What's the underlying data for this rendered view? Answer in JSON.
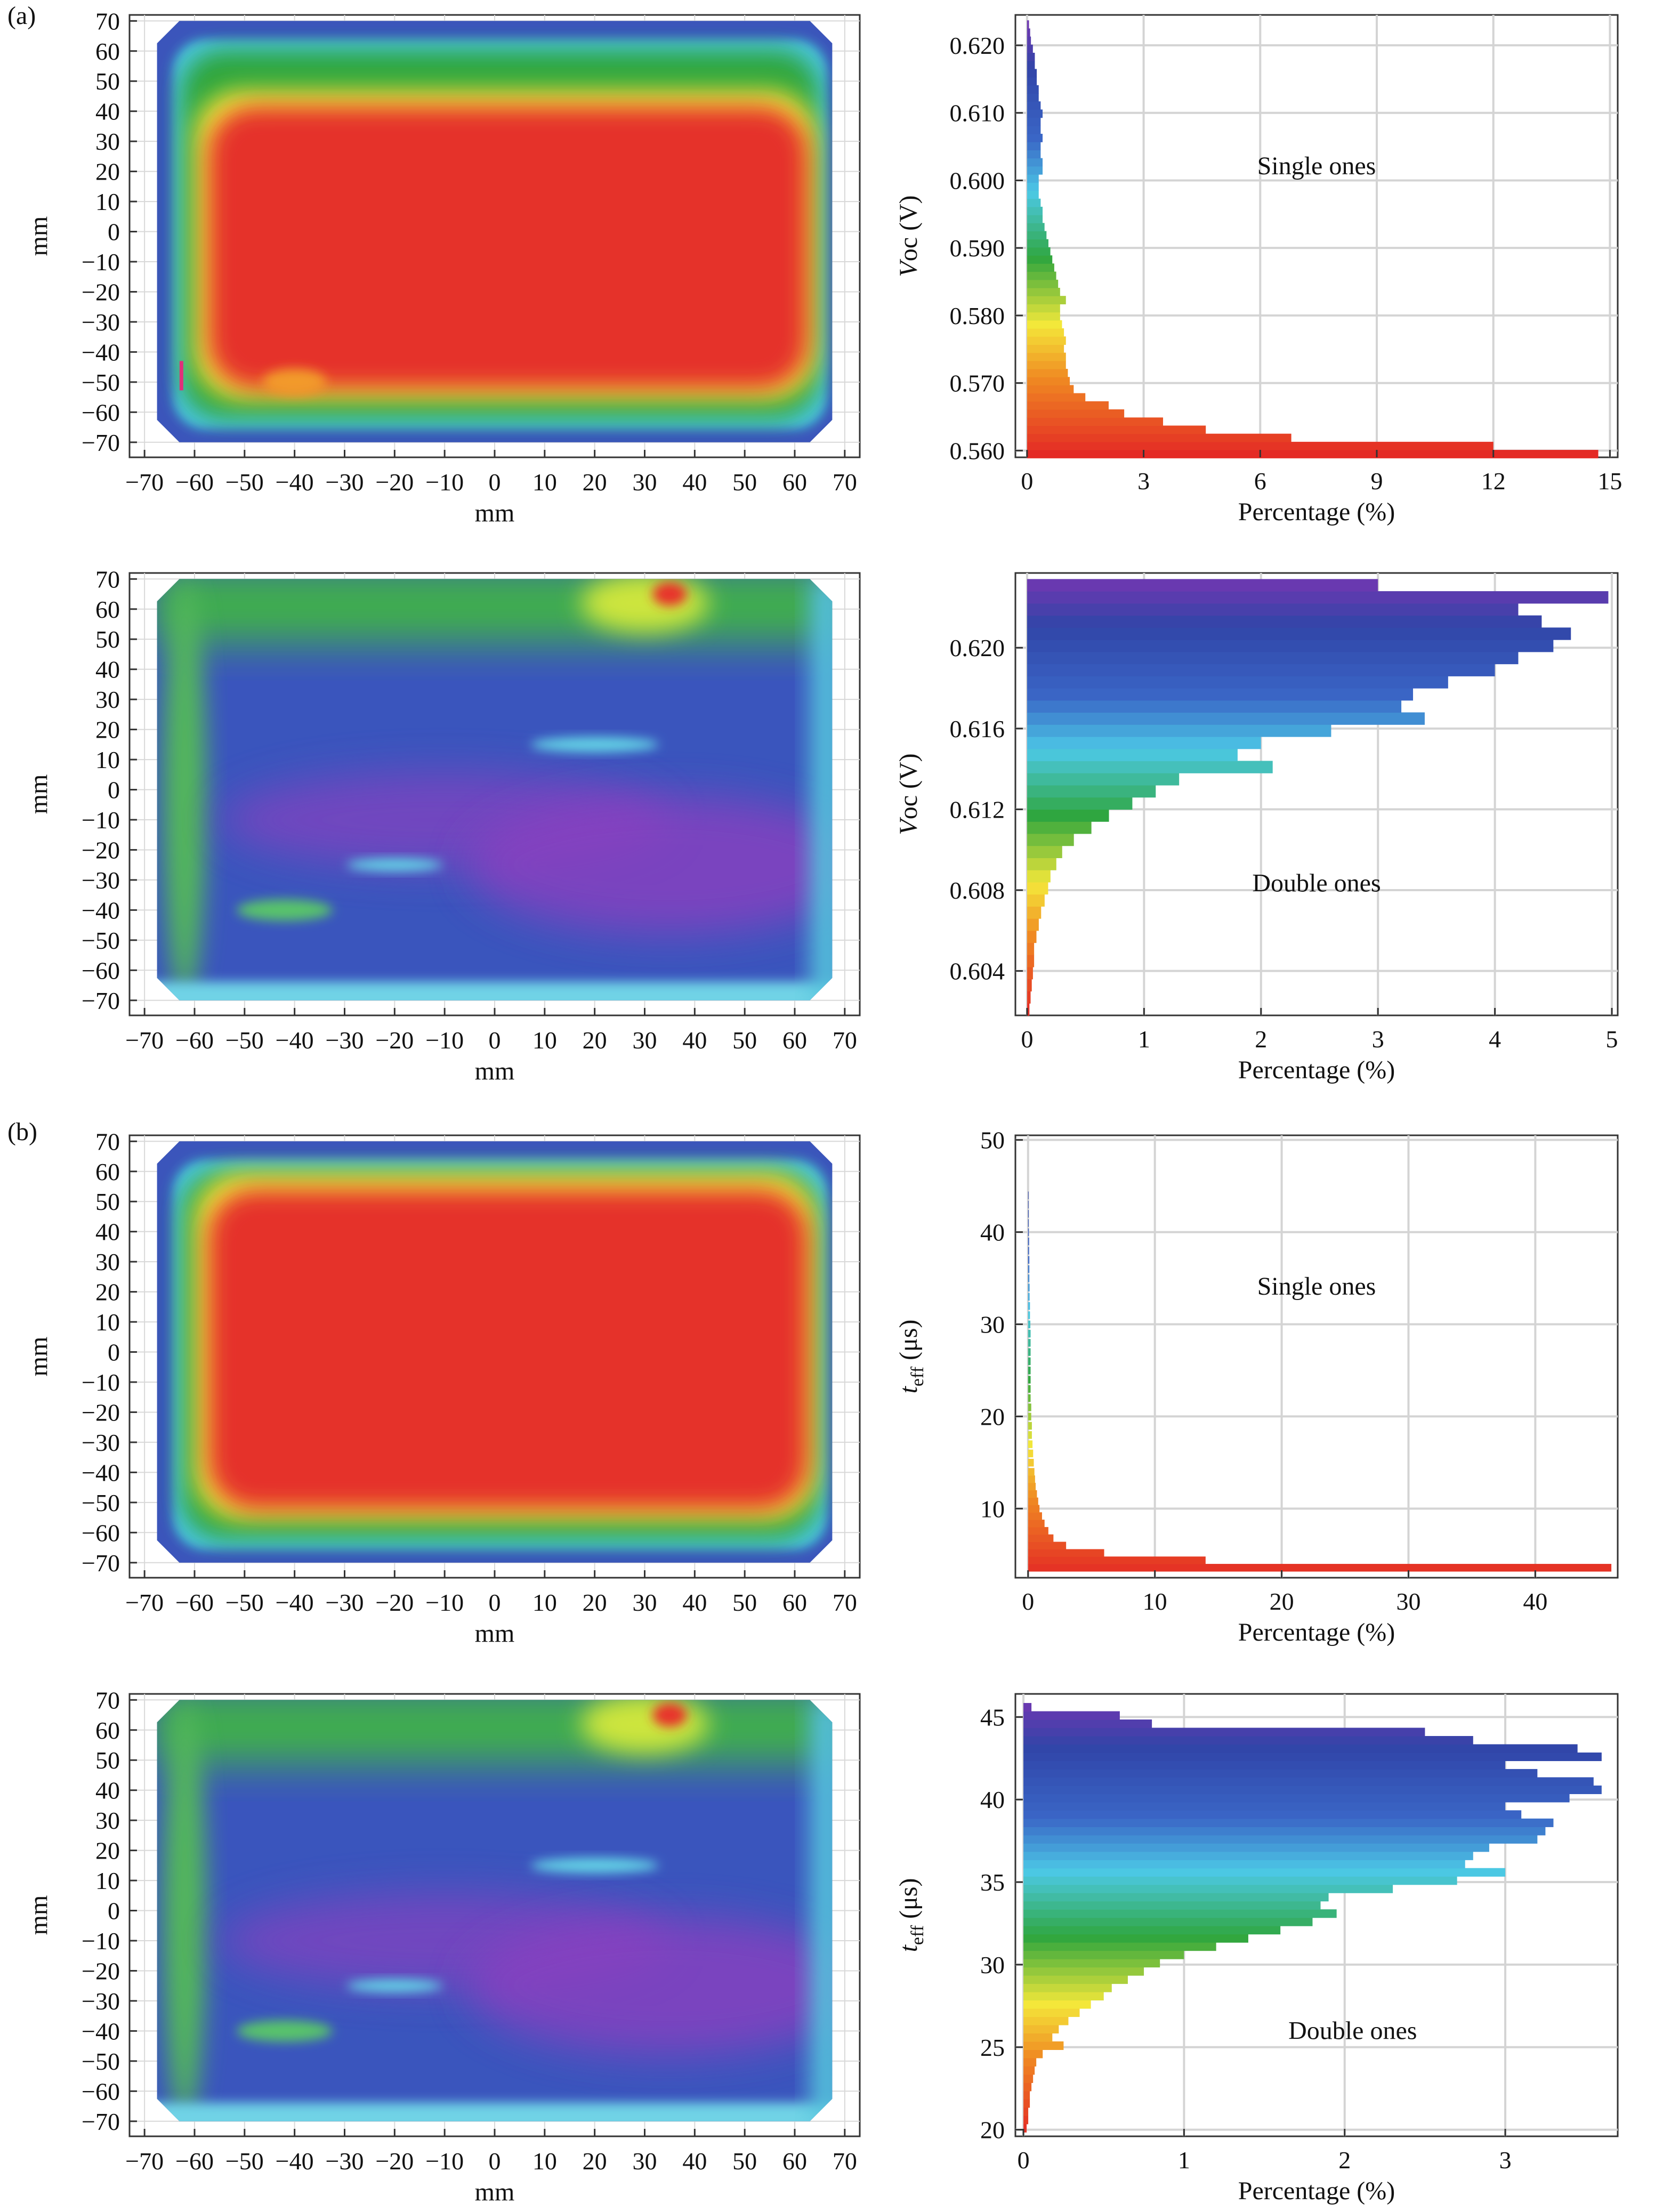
{
  "labels": {
    "a": "(a)",
    "b": "(b)"
  },
  "colors": {
    "red": "#e8302a",
    "yellow": "#f4e83a",
    "green": "#2fa63e",
    "cyan": "#4cc9e6",
    "blue": "#3550b8",
    "purple": "#7a35b3",
    "magenta": "#c03cc0"
  },
  "chart_data": [
    {
      "type": "heatmap",
      "id": "map-a-single",
      "xlabel": "mm",
      "ylabel": "mm",
      "xticks": [
        -70,
        -60,
        -50,
        -40,
        -30,
        -20,
        -10,
        0,
        10,
        20,
        30,
        40,
        50,
        60,
        70
      ],
      "yticks": [
        70,
        60,
        50,
        40,
        30,
        20,
        10,
        0,
        -10,
        -20,
        -30,
        -40,
        -50,
        -60,
        -70
      ],
      "xlim": [
        -73,
        73
      ],
      "ylim": [
        -75,
        72
      ],
      "pattern": "red center with green/yellow rim and blue edges"
    },
    {
      "type": "bar",
      "id": "hist-a-single",
      "orientation": "horizontal",
      "annotation": "Single ones",
      "xlabel": "Percentage (%)",
      "ylabel_main": "V",
      "ylabel_sub": "oc (V)",
      "xticks": [
        0,
        3,
        6,
        9,
        12,
        15
      ],
      "yticks": [
        "0.620",
        "0.610",
        "0.600",
        "0.590",
        "0.580",
        "0.570",
        "0.560"
      ],
      "ylim": [
        0.559,
        0.6245
      ],
      "xlim": [
        -0.3,
        15.2
      ],
      "bins": [
        [
          0.5595,
          14.7
        ],
        [
          0.5607,
          12.0
        ],
        [
          0.5619,
          6.8
        ],
        [
          0.5631,
          4.6
        ],
        [
          0.5643,
          3.5
        ],
        [
          0.5655,
          2.5
        ],
        [
          0.5667,
          2.1
        ],
        [
          0.5679,
          1.5
        ],
        [
          0.5691,
          1.2
        ],
        [
          0.5703,
          1.1
        ],
        [
          0.5715,
          1.05
        ],
        [
          0.5727,
          1.0
        ],
        [
          0.5739,
          1.0
        ],
        [
          0.5751,
          0.95
        ],
        [
          0.5763,
          1.0
        ],
        [
          0.5775,
          0.95
        ],
        [
          0.5787,
          0.9
        ],
        [
          0.5799,
          0.85
        ],
        [
          0.5811,
          0.85
        ],
        [
          0.5823,
          1.0
        ],
        [
          0.5835,
          0.85
        ],
        [
          0.5847,
          0.8
        ],
        [
          0.5859,
          0.75
        ],
        [
          0.5871,
          0.7
        ],
        [
          0.5883,
          0.65
        ],
        [
          0.5895,
          0.6
        ],
        [
          0.5907,
          0.55
        ],
        [
          0.5919,
          0.5
        ],
        [
          0.5931,
          0.45
        ],
        [
          0.5943,
          0.4
        ],
        [
          0.5955,
          0.4
        ],
        [
          0.5967,
          0.35
        ],
        [
          0.5979,
          0.3
        ],
        [
          0.5991,
          0.3
        ],
        [
          0.6003,
          0.3
        ],
        [
          0.6015,
          0.4
        ],
        [
          0.6027,
          0.4
        ],
        [
          0.6039,
          0.35
        ],
        [
          0.6051,
          0.35
        ],
        [
          0.6063,
          0.4
        ],
        [
          0.6075,
          0.35
        ],
        [
          0.6087,
          0.35
        ],
        [
          0.6099,
          0.4
        ],
        [
          0.6111,
          0.35
        ],
        [
          0.6123,
          0.3
        ],
        [
          0.6135,
          0.3
        ],
        [
          0.6147,
          0.25
        ],
        [
          0.6159,
          0.25
        ],
        [
          0.6171,
          0.2
        ],
        [
          0.6183,
          0.2
        ],
        [
          0.6195,
          0.15
        ],
        [
          0.6207,
          0.1
        ],
        [
          0.6219,
          0.08
        ],
        [
          0.6231,
          0.05
        ]
      ]
    },
    {
      "type": "heatmap",
      "id": "map-a-double",
      "xlabel": "mm",
      "ylabel": "mm",
      "xticks": [
        -70,
        -60,
        -50,
        -40,
        -30,
        -20,
        -10,
        0,
        10,
        20,
        30,
        40,
        50,
        60,
        70
      ],
      "yticks": [
        70,
        60,
        50,
        40,
        30,
        20,
        10,
        0,
        -10,
        -20,
        -30,
        -40,
        -50,
        -60,
        -70
      ],
      "xlim": [
        -73,
        73
      ],
      "ylim": [
        -75,
        72
      ],
      "pattern": "mostly blue/purple with green top band and red hotspot near (35,65)"
    },
    {
      "type": "bar",
      "id": "hist-a-double",
      "orientation": "horizontal",
      "annotation": "Double ones",
      "xlabel": "Percentage (%)",
      "ylabel_main": "V",
      "ylabel_sub": "oc (V)",
      "xticks": [
        0,
        1,
        2,
        3,
        4,
        5
      ],
      "yticks": [
        "0.620",
        "0.616",
        "0.612",
        "0.608",
        "0.604"
      ],
      "ylim": [
        0.6018,
        0.6237
      ],
      "xlim": [
        -0.1,
        5.05
      ],
      "bins": [
        [
          0.6021,
          0.02
        ],
        [
          0.6027,
          0.03
        ],
        [
          0.6033,
          0.04
        ],
        [
          0.6039,
          0.05
        ],
        [
          0.6045,
          0.06
        ],
        [
          0.6051,
          0.06
        ],
        [
          0.6057,
          0.08
        ],
        [
          0.6063,
          0.1
        ],
        [
          0.6069,
          0.12
        ],
        [
          0.6075,
          0.15
        ],
        [
          0.6081,
          0.18
        ],
        [
          0.6087,
          0.2
        ],
        [
          0.6093,
          0.25
        ],
        [
          0.6099,
          0.3
        ],
        [
          0.6105,
          0.4
        ],
        [
          0.6111,
          0.55
        ],
        [
          0.6117,
          0.7
        ],
        [
          0.6123,
          0.9
        ],
        [
          0.6129,
          1.1
        ],
        [
          0.6135,
          1.3
        ],
        [
          0.6141,
          2.1
        ],
        [
          0.6147,
          1.8
        ],
        [
          0.6153,
          2.0
        ],
        [
          0.6159,
          2.6
        ],
        [
          0.6165,
          3.4
        ],
        [
          0.6171,
          3.2
        ],
        [
          0.6177,
          3.3
        ],
        [
          0.6183,
          3.6
        ],
        [
          0.6189,
          4.0
        ],
        [
          0.6195,
          4.2
        ],
        [
          0.6201,
          4.5
        ],
        [
          0.6207,
          4.65
        ],
        [
          0.6213,
          4.4
        ],
        [
          0.6219,
          4.2
        ],
        [
          0.6225,
          4.97
        ],
        [
          0.6231,
          3.0
        ]
      ]
    },
    {
      "type": "heatmap",
      "id": "map-b-single",
      "xlabel": "mm",
      "ylabel": "mm",
      "xticks": [
        -70,
        -60,
        -50,
        -40,
        -30,
        -20,
        -10,
        0,
        10,
        20,
        30,
        40,
        50,
        60,
        70
      ],
      "yticks": [
        70,
        60,
        50,
        40,
        30,
        20,
        10,
        0,
        -10,
        -20,
        -30,
        -40,
        -50,
        -60,
        -70
      ],
      "xlim": [
        -73,
        73
      ],
      "ylim": [
        -75,
        72
      ],
      "pattern": "nearly uniform red with thin green/blue rim"
    },
    {
      "type": "bar",
      "id": "hist-b-single",
      "orientation": "horizontal",
      "annotation": "Single ones",
      "xlabel": "Percentage (%)",
      "ylabel_main": "t",
      "ylabel_sub": "eff",
      "ylabel_unit": " (μs)",
      "xticks": [
        0,
        10,
        20,
        30,
        40
      ],
      "yticks": [
        "50",
        "40",
        "30",
        "20",
        "10"
      ],
      "ylim": [
        2.5,
        50.5
      ],
      "xlim": [
        -1,
        46.5
      ],
      "bins": [
        [
          3.6,
          46.0
        ],
        [
          4.4,
          14.0
        ],
        [
          5.2,
          6.0
        ],
        [
          6.0,
          3.0
        ],
        [
          6.8,
          2.0
        ],
        [
          7.6,
          1.6
        ],
        [
          8.4,
          1.3
        ],
        [
          9.2,
          1.1
        ],
        [
          10.0,
          0.9
        ],
        [
          10.8,
          0.8
        ],
        [
          11.6,
          0.7
        ],
        [
          12.4,
          0.6
        ],
        [
          13.2,
          0.55
        ],
        [
          14.0,
          0.5
        ],
        [
          15.0,
          0.45
        ],
        [
          16.0,
          0.4
        ],
        [
          17.0,
          0.35
        ],
        [
          18.0,
          0.3
        ],
        [
          19.0,
          0.3
        ],
        [
          20.0,
          0.25
        ],
        [
          21.0,
          0.25
        ],
        [
          22.0,
          0.2
        ],
        [
          23.0,
          0.2
        ],
        [
          24.0,
          0.2
        ],
        [
          25.0,
          0.2
        ],
        [
          26.0,
          0.2
        ],
        [
          27.0,
          0.2
        ],
        [
          28.0,
          0.2
        ],
        [
          29.0,
          0.2
        ],
        [
          30.0,
          0.18
        ],
        [
          31.0,
          0.15
        ],
        [
          32.0,
          0.15
        ],
        [
          33.0,
          0.12
        ],
        [
          34.0,
          0.12
        ],
        [
          35.0,
          0.1
        ],
        [
          36.0,
          0.1
        ],
        [
          37.0,
          0.1
        ],
        [
          38.0,
          0.08
        ],
        [
          39.0,
          0.08
        ],
        [
          40.0,
          0.06
        ],
        [
          41.0,
          0.05
        ],
        [
          42.0,
          0.05
        ],
        [
          43.0,
          0.04
        ],
        [
          44.0,
          0.03
        ]
      ]
    },
    {
      "type": "heatmap",
      "id": "map-b-double",
      "xlabel": "mm",
      "ylabel": "mm",
      "xticks": [
        -70,
        -60,
        -50,
        -40,
        -30,
        -20,
        -10,
        0,
        10,
        20,
        30,
        40,
        50,
        60,
        70
      ],
      "yticks": [
        70,
        60,
        50,
        40,
        30,
        20,
        10,
        0,
        -10,
        -20,
        -30,
        -40,
        -50,
        -60,
        -70
      ],
      "xlim": [
        -73,
        73
      ],
      "ylim": [
        -75,
        72
      ],
      "pattern": "mostly blue/purple with green top band and red hotspot near (35,65)"
    },
    {
      "type": "bar",
      "id": "hist-b-double",
      "orientation": "horizontal",
      "annotation": "Double ones",
      "xlabel": "Percentage (%)",
      "ylabel_main": "t",
      "ylabel_sub": "eff",
      "ylabel_unit": " (μs)",
      "xticks": [
        0,
        1,
        2,
        3
      ],
      "yticks": [
        "45",
        "40",
        "35",
        "30",
        "25",
        "20"
      ],
      "ylim": [
        19.6,
        46.4
      ],
      "xlim": [
        -0.05,
        3.7
      ],
      "bins": [
        [
          20.1,
          0.02
        ],
        [
          20.6,
          0.03
        ],
        [
          21.1,
          0.03
        ],
        [
          21.6,
          0.04
        ],
        [
          22.1,
          0.04
        ],
        [
          22.6,
          0.05
        ],
        [
          23.1,
          0.06
        ],
        [
          23.6,
          0.07
        ],
        [
          24.1,
          0.08
        ],
        [
          24.6,
          0.12
        ],
        [
          25.1,
          0.25
        ],
        [
          25.6,
          0.18
        ],
        [
          26.1,
          0.22
        ],
        [
          26.6,
          0.28
        ],
        [
          27.1,
          0.35
        ],
        [
          27.6,
          0.42
        ],
        [
          28.1,
          0.5
        ],
        [
          28.6,
          0.55
        ],
        [
          29.1,
          0.65
        ],
        [
          29.6,
          0.75
        ],
        [
          30.1,
          0.85
        ],
        [
          30.6,
          1.0
        ],
        [
          31.1,
          1.2
        ],
        [
          31.6,
          1.4
        ],
        [
          32.1,
          1.6
        ],
        [
          32.6,
          1.8
        ],
        [
          33.1,
          1.95
        ],
        [
          33.6,
          1.85
        ],
        [
          34.1,
          1.9
        ],
        [
          34.6,
          2.3
        ],
        [
          35.1,
          2.7
        ],
        [
          35.6,
          3.0
        ],
        [
          36.1,
          2.75
        ],
        [
          36.6,
          2.8
        ],
        [
          37.1,
          2.9
        ],
        [
          37.6,
          3.2
        ],
        [
          38.1,
          3.25
        ],
        [
          38.6,
          3.3
        ],
        [
          39.1,
          3.1
        ],
        [
          39.6,
          3.0
        ],
        [
          40.1,
          3.4
        ],
        [
          40.6,
          3.6
        ],
        [
          41.1,
          3.55
        ],
        [
          41.6,
          3.2
        ],
        [
          42.1,
          3.0
        ],
        [
          42.6,
          3.6
        ],
        [
          43.1,
          3.45
        ],
        [
          43.6,
          2.8
        ],
        [
          44.1,
          2.5
        ],
        [
          44.6,
          0.8
        ],
        [
          45.1,
          0.6
        ],
        [
          45.6,
          0.05
        ]
      ]
    }
  ]
}
